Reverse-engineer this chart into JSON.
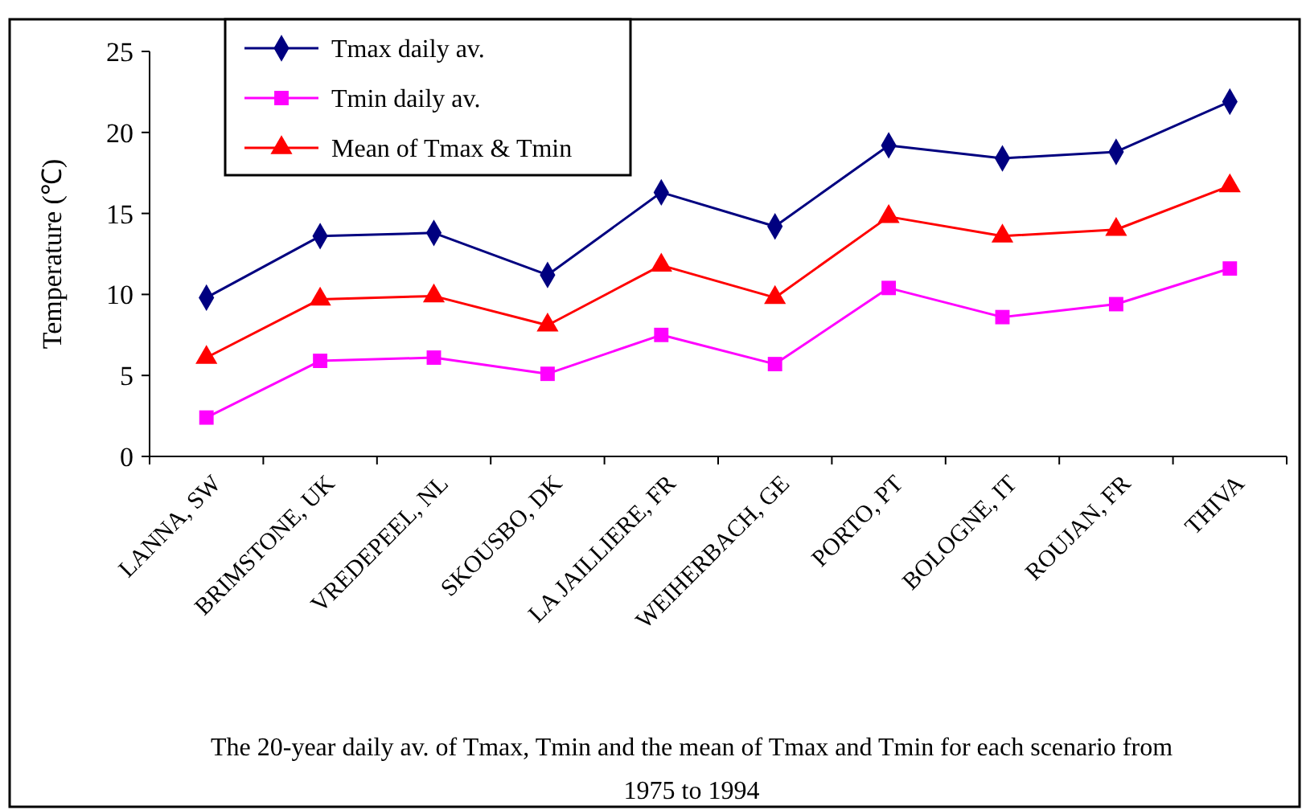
{
  "chart_data": {
    "type": "line",
    "ylabel": "Temperature (℃)",
    "categories": [
      "LANNA, SW",
      "BRIMSTONE, UK",
      "VREDEPEEL, NL",
      "SKOUSBO, DK",
      "LA JAILLIERE, FR",
      "WEIHERBACH, GE",
      "PORTO, PT",
      "BOLOGNE, IT",
      "ROUJAN, FR",
      "THIVA"
    ],
    "series": [
      {
        "name": "Tmax daily av.",
        "color": "#000080",
        "marker": "diamond",
        "values": [
          9.8,
          13.6,
          13.8,
          11.2,
          16.3,
          14.2,
          19.2,
          18.4,
          18.8,
          21.9
        ]
      },
      {
        "name": "Tmin daily av.",
        "color": "#ff00ff",
        "marker": "square",
        "values": [
          2.4,
          5.9,
          6.1,
          5.1,
          7.5,
          5.7,
          10.4,
          8.6,
          9.4,
          11.6
        ]
      },
      {
        "name": "Mean of Tmax & Tmin",
        "color": "#ff0000",
        "marker": "triangle",
        "values": [
          6.1,
          9.7,
          9.9,
          8.1,
          11.8,
          9.8,
          14.8,
          13.6,
          14.0,
          16.7
        ]
      }
    ],
    "ylim": [
      0,
      25
    ],
    "yticks": [
      0,
      5,
      10,
      15,
      20,
      25
    ],
    "grid": false,
    "legend": "top left",
    "annotations": [
      "The 20-year daily av. of Tmax, Tmin and the mean of Tmax and Tmin for each scenario from 1975 to 1994"
    ]
  }
}
